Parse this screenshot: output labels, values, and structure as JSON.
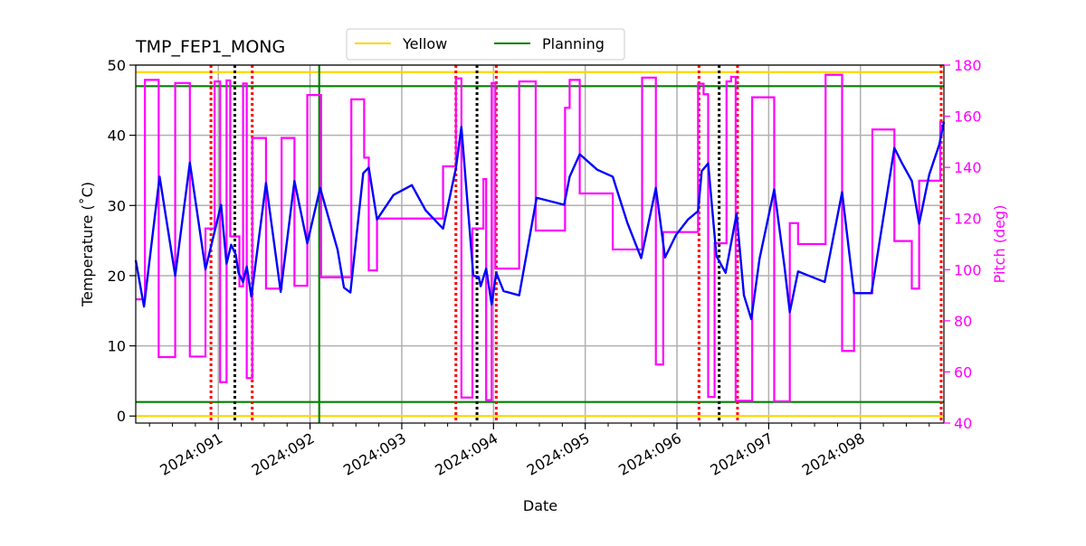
{
  "chart_data": {
    "type": "line",
    "title": "TMP_FEP1_MONG",
    "xlabel": "Date",
    "ylabel": "Temperature ($^\\circ$C)",
    "ylabel_display": "Temperature (˚C)",
    "y2label": "Pitch (deg)",
    "xlim": [
      90.1,
      98.91
    ],
    "ylim": [
      -1.0,
      50.0
    ],
    "y2lim": [
      40,
      180
    ],
    "grid": true,
    "legend_placement": "top-center, above plot",
    "x_ticks": [
      {
        "value": 91,
        "label": "2024:091"
      },
      {
        "value": 92,
        "label": "2024:092"
      },
      {
        "value": 93,
        "label": "2024:093"
      },
      {
        "value": 94,
        "label": "2024:094"
      },
      {
        "value": 95,
        "label": "2024:095"
      },
      {
        "value": 96,
        "label": "2024:096"
      },
      {
        "value": 97,
        "label": "2024:097"
      },
      {
        "value": 98,
        "label": "2024:098"
      }
    ],
    "y_ticks": [
      0,
      10,
      20,
      30,
      40,
      50
    ],
    "y2_ticks": [
      40,
      60,
      80,
      100,
      120,
      140,
      160,
      180
    ],
    "limit_lines": [
      {
        "name": "Yellow",
        "values": [
          49.0,
          0.0
        ],
        "color": "#ffd700"
      },
      {
        "name": "Planning",
        "values": [
          47.0,
          2.0
        ],
        "color": "#008000"
      }
    ],
    "planning_vertical_line": {
      "x": 92.1,
      "color": "#008000"
    },
    "red_dotted_lines": {
      "x": [
        90.92,
        91.37,
        93.59,
        94.03,
        96.24,
        96.66,
        98.88
      ],
      "color": "#ff0000"
    },
    "black_dotted_lines": {
      "x": [
        91.18,
        93.82,
        96.46
      ],
      "color": "#000000"
    },
    "temperature": {
      "color": "#0000ff",
      "points": [
        [
          90.1,
          22.2
        ],
        [
          90.19,
          15.6
        ],
        [
          90.36,
          34.1
        ],
        [
          90.53,
          20.0
        ],
        [
          90.69,
          36.1
        ],
        [
          90.86,
          20.9
        ],
        [
          91.03,
          30.1
        ],
        [
          91.09,
          21.7
        ],
        [
          91.14,
          24.4
        ],
        [
          91.19,
          23.0
        ],
        [
          91.22,
          20.4
        ],
        [
          91.27,
          19.1
        ],
        [
          91.31,
          21.3
        ],
        [
          91.36,
          17.0
        ],
        [
          91.52,
          33.2
        ],
        [
          91.68,
          17.7
        ],
        [
          91.83,
          33.5
        ],
        [
          91.97,
          24.6
        ],
        [
          92.11,
          32.5
        ],
        [
          92.3,
          23.7
        ],
        [
          92.37,
          18.3
        ],
        [
          92.44,
          17.6
        ],
        [
          92.58,
          34.6
        ],
        [
          92.64,
          35.4
        ],
        [
          92.73,
          28.0
        ],
        [
          92.91,
          31.5
        ],
        [
          93.11,
          32.9
        ],
        [
          93.26,
          29.3
        ],
        [
          93.45,
          26.7
        ],
        [
          93.59,
          35.3
        ],
        [
          93.65,
          41.2
        ],
        [
          93.78,
          20.0
        ],
        [
          93.84,
          19.8
        ],
        [
          93.86,
          18.5
        ],
        [
          93.92,
          21.0
        ],
        [
          93.98,
          15.9
        ],
        [
          94.03,
          20.4
        ],
        [
          94.11,
          17.8
        ],
        [
          94.28,
          17.2
        ],
        [
          94.47,
          31.1
        ],
        [
          94.77,
          30.1
        ],
        [
          94.83,
          34.1
        ],
        [
          94.94,
          37.3
        ],
        [
          95.13,
          35.1
        ],
        [
          95.3,
          34.1
        ],
        [
          95.46,
          27.5
        ],
        [
          95.61,
          22.5
        ],
        [
          95.77,
          32.5
        ],
        [
          95.87,
          22.6
        ],
        [
          95.99,
          25.8
        ],
        [
          96.12,
          28.0
        ],
        [
          96.23,
          29.2
        ],
        [
          96.27,
          34.9
        ],
        [
          96.34,
          36.0
        ],
        [
          96.43,
          22.8
        ],
        [
          96.53,
          20.4
        ],
        [
          96.65,
          28.8
        ],
        [
          96.73,
          17.2
        ],
        [
          96.81,
          13.8
        ],
        [
          96.9,
          22.4
        ],
        [
          97.06,
          32.3
        ],
        [
          97.17,
          21.5
        ],
        [
          97.23,
          14.8
        ],
        [
          97.32,
          20.6
        ],
        [
          97.61,
          19.1
        ],
        [
          97.8,
          31.9
        ],
        [
          97.93,
          17.5
        ],
        [
          98.12,
          17.5
        ],
        [
          98.37,
          38.2
        ],
        [
          98.45,
          36.1
        ],
        [
          98.56,
          33.5
        ],
        [
          98.64,
          27.4
        ],
        [
          98.75,
          34.4
        ],
        [
          98.86,
          38.7
        ],
        [
          98.91,
          41.9
        ]
      ]
    },
    "pitch": {
      "color": "#ff00ff",
      "step_end": 98.91,
      "steps": [
        [
          90.1,
          88.4
        ],
        [
          90.2,
          174.2
        ],
        [
          90.35,
          65.8
        ],
        [
          90.53,
          173.0
        ],
        [
          90.69,
          66.0
        ],
        [
          90.86,
          116.1
        ],
        [
          90.96,
          173.6
        ],
        [
          91.02,
          56.0
        ],
        [
          91.09,
          174.0
        ],
        [
          91.13,
          113.0
        ],
        [
          91.23,
          93.5
        ],
        [
          91.27,
          172.8
        ],
        [
          91.31,
          57.6
        ],
        [
          91.37,
          151.5
        ],
        [
          91.52,
          92.6
        ],
        [
          91.69,
          151.5
        ],
        [
          91.83,
          93.7
        ],
        [
          91.97,
          168.3
        ],
        [
          92.12,
          97.0
        ],
        [
          92.45,
          166.6
        ],
        [
          92.59,
          143.8
        ],
        [
          92.64,
          99.7
        ],
        [
          92.73,
          120.0
        ],
        [
          93.45,
          140.4
        ],
        [
          93.59,
          174.8
        ],
        [
          93.65,
          50.0
        ],
        [
          93.77,
          116.1
        ],
        [
          93.89,
          135.4
        ],
        [
          93.92,
          49.0
        ],
        [
          93.98,
          173.0
        ],
        [
          94.02,
          100.4
        ],
        [
          94.28,
          173.6
        ],
        [
          94.46,
          115.3
        ],
        [
          94.78,
          163.3
        ],
        [
          94.83,
          174.2
        ],
        [
          94.94,
          129.8
        ],
        [
          95.3,
          107.9
        ],
        [
          95.62,
          175.1
        ],
        [
          95.77,
          62.9
        ],
        [
          95.85,
          114.7
        ],
        [
          96.23,
          172.7
        ],
        [
          96.29,
          168.6
        ],
        [
          96.34,
          50.2
        ],
        [
          96.41,
          110.3
        ],
        [
          96.54,
          173.6
        ],
        [
          96.59,
          175.4
        ],
        [
          96.64,
          48.7
        ],
        [
          96.82,
          167.4
        ],
        [
          97.06,
          48.5
        ],
        [
          97.23,
          118.2
        ],
        [
          97.32,
          110.0
        ],
        [
          97.62,
          176.2
        ],
        [
          97.8,
          68.2
        ],
        [
          97.93,
          90.8
        ],
        [
          98.13,
          154.8
        ],
        [
          98.37,
          111.2
        ],
        [
          98.56,
          92.6
        ],
        [
          98.64,
          134.8
        ],
        [
          98.87,
          157.7
        ]
      ]
    },
    "legend": [
      {
        "label": "Yellow",
        "color": "#ffd700"
      },
      {
        "label": "Planning",
        "color": "#008000"
      }
    ]
  }
}
